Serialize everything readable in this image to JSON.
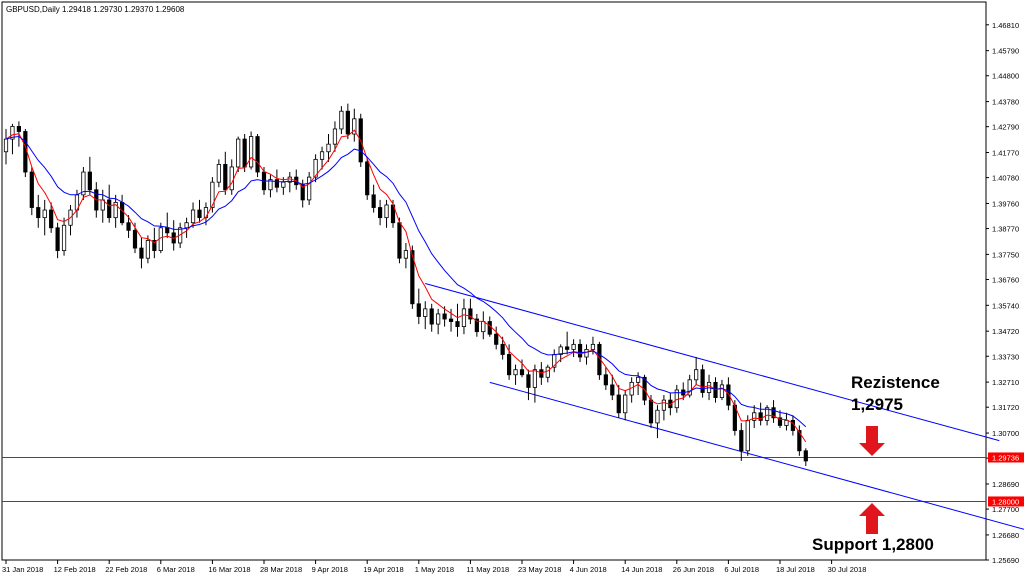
{
  "header": {
    "symbol": "GBPUSD,Daily",
    "ohlc": "1.29418 1.29730 1.29370 1.29608"
  },
  "colors": {
    "background": "#ffffff",
    "candle_outline": "#000000",
    "bull_body": "#ffffff",
    "bear_body": "#000000",
    "ma_fast": "#ff0000",
    "ma_slow": "#0000ff",
    "channel": "#0000ff",
    "hline": "#ff0000",
    "arrow": "#e0151d"
  },
  "annotations": {
    "resistance_title": "Rezistence",
    "resistance_value": "1,2975",
    "support_label": "Support 1,2800"
  },
  "chart_data": {
    "type": "candlestick",
    "title": "GBPUSD,Daily",
    "ylim": [
      1.2569,
      1.4771
    ],
    "y_ticks": [
      "1.46810",
      "1.45790",
      "1.44800",
      "1.43780",
      "1.42790",
      "1.41770",
      "1.40780",
      "1.39760",
      "1.38770",
      "1.37750",
      "1.36760",
      "1.35740",
      "1.34720",
      "1.33730",
      "1.32710",
      "1.31720",
      "1.30700",
      "1.29710",
      "1.28690",
      "1.27700",
      "1.26680",
      "1.25690"
    ],
    "x_ticks": [
      {
        "label": "31 Jan 2018",
        "index": 0
      },
      {
        "label": "12 Feb 2018",
        "index": 8
      },
      {
        "label": "22 Feb 2018",
        "index": 16
      },
      {
        "label": "6 Mar 2018",
        "index": 24
      },
      {
        "label": "16 Mar 2018",
        "index": 32
      },
      {
        "label": "28 Mar 2018",
        "index": 40
      },
      {
        "label": "9 Apr 2018",
        "index": 48
      },
      {
        "label": "19 Apr 2018",
        "index": 56
      },
      {
        "label": "1 May 2018",
        "index": 64
      },
      {
        "label": "11 May 2018",
        "index": 72
      },
      {
        "label": "23 May 2018",
        "index": 80
      },
      {
        "label": "4 Jun 2018",
        "index": 88
      },
      {
        "label": "14 Jun 2018",
        "index": 96
      },
      {
        "label": "26 Jun 2018",
        "index": 104
      },
      {
        "label": "6 Jul 2018",
        "index": 112
      },
      {
        "label": "18 Jul 2018",
        "index": 120
      },
      {
        "label": "30 Jul 2018",
        "index": 128
      }
    ],
    "price_labels": [
      {
        "text": "1.29736",
        "value": 1.29736
      },
      {
        "text": "1.28000",
        "value": 1.28
      }
    ],
    "hlines": [
      1.29736,
      1.28
    ],
    "channel": {
      "upper": {
        "start_index": 65,
        "start": 1.366,
        "end_index": 154,
        "end": 1.304
      },
      "lower": {
        "start_index": 75,
        "start": 1.327,
        "end_index": 160,
        "end": 1.2675
      }
    },
    "candles": [
      [
        1.418,
        1.427,
        1.413,
        1.423
      ],
      [
        1.423,
        1.429,
        1.417,
        1.428
      ],
      [
        1.428,
        1.43,
        1.42,
        1.426
      ],
      [
        1.426,
        1.427,
        1.408,
        1.41
      ],
      [
        1.41,
        1.412,
        1.393,
        1.396
      ],
      [
        1.396,
        1.401,
        1.388,
        1.392
      ],
      [
        1.392,
        1.399,
        1.385,
        1.395
      ],
      [
        1.395,
        1.398,
        1.386,
        1.388
      ],
      [
        1.388,
        1.39,
        1.376,
        1.379
      ],
      [
        1.379,
        1.392,
        1.377,
        1.389
      ],
      [
        1.389,
        1.397,
        1.385,
        1.395
      ],
      [
        1.395,
        1.403,
        1.392,
        1.401
      ],
      [
        1.401,
        1.412,
        1.399,
        1.41
      ],
      [
        1.41,
        1.416,
        1.401,
        1.403
      ],
      [
        1.403,
        1.406,
        1.392,
        1.395
      ],
      [
        1.395,
        1.403,
        1.39,
        1.399
      ],
      [
        1.399,
        1.405,
        1.39,
        1.392
      ],
      [
        1.392,
        1.401,
        1.388,
        1.398
      ],
      [
        1.398,
        1.401,
        1.389,
        1.39
      ],
      [
        1.39,
        1.393,
        1.384,
        1.387
      ],
      [
        1.387,
        1.39,
        1.378,
        1.38
      ],
      [
        1.38,
        1.384,
        1.372,
        1.376
      ],
      [
        1.376,
        1.385,
        1.374,
        1.383
      ],
      [
        1.383,
        1.388,
        1.376,
        1.379
      ],
      [
        1.379,
        1.39,
        1.378,
        1.388
      ],
      [
        1.388,
        1.394,
        1.384,
        1.386
      ],
      [
        1.386,
        1.391,
        1.379,
        1.382
      ],
      [
        1.382,
        1.39,
        1.38,
        1.388
      ],
      [
        1.388,
        1.392,
        1.384,
        1.39
      ],
      [
        1.39,
        1.398,
        1.388,
        1.395
      ],
      [
        1.395,
        1.399,
        1.39,
        1.392
      ],
      [
        1.392,
        1.398,
        1.389,
        1.396
      ],
      [
        1.396,
        1.408,
        1.394,
        1.406
      ],
      [
        1.406,
        1.415,
        1.404,
        1.413
      ],
      [
        1.413,
        1.418,
        1.401,
        1.403
      ],
      [
        1.403,
        1.415,
        1.401,
        1.412
      ],
      [
        1.412,
        1.424,
        1.41,
        1.423
      ],
      [
        1.423,
        1.425,
        1.41,
        1.412
      ],
      [
        1.412,
        1.426,
        1.411,
        1.424
      ],
      [
        1.424,
        1.425,
        1.408,
        1.41
      ],
      [
        1.41,
        1.412,
        1.401,
        1.403
      ],
      [
        1.403,
        1.409,
        1.4,
        1.407
      ],
      [
        1.407,
        1.411,
        1.402,
        1.404
      ],
      [
        1.404,
        1.408,
        1.401,
        1.406
      ],
      [
        1.406,
        1.41,
        1.402,
        1.408
      ],
      [
        1.408,
        1.411,
        1.403,
        1.405
      ],
      [
        1.405,
        1.407,
        1.396,
        1.399
      ],
      [
        1.399,
        1.41,
        1.397,
        1.408
      ],
      [
        1.408,
        1.417,
        1.406,
        1.415
      ],
      [
        1.415,
        1.42,
        1.411,
        1.418
      ],
      [
        1.418,
        1.425,
        1.414,
        1.421
      ],
      [
        1.421,
        1.43,
        1.418,
        1.427
      ],
      [
        1.427,
        1.436,
        1.425,
        1.434
      ],
      [
        1.434,
        1.437,
        1.423,
        1.425
      ],
      [
        1.425,
        1.435,
        1.422,
        1.431
      ],
      [
        1.431,
        1.433,
        1.412,
        1.414
      ],
      [
        1.414,
        1.416,
        1.399,
        1.401
      ],
      [
        1.401,
        1.405,
        1.394,
        1.396
      ],
      [
        1.396,
        1.399,
        1.389,
        1.392
      ],
      [
        1.392,
        1.399,
        1.388,
        1.397
      ],
      [
        1.397,
        1.399,
        1.388,
        1.39
      ],
      [
        1.39,
        1.392,
        1.374,
        1.376
      ],
      [
        1.376,
        1.382,
        1.372,
        1.379
      ],
      [
        1.379,
        1.381,
        1.356,
        1.358
      ],
      [
        1.358,
        1.364,
        1.35,
        1.353
      ],
      [
        1.353,
        1.359,
        1.348,
        1.356
      ],
      [
        1.356,
        1.358,
        1.347,
        1.35
      ],
      [
        1.35,
        1.356,
        1.346,
        1.354
      ],
      [
        1.354,
        1.357,
        1.349,
        1.352
      ],
      [
        1.352,
        1.356,
        1.347,
        1.351
      ],
      [
        1.351,
        1.358,
        1.345,
        1.349
      ],
      [
        1.349,
        1.36,
        1.346,
        1.356
      ],
      [
        1.356,
        1.36,
        1.35,
        1.352
      ],
      [
        1.352,
        1.354,
        1.345,
        1.347
      ],
      [
        1.347,
        1.355,
        1.344,
        1.351
      ],
      [
        1.351,
        1.353,
        1.345,
        1.346
      ],
      [
        1.346,
        1.349,
        1.34,
        1.342
      ],
      [
        1.342,
        1.345,
        1.336,
        1.338
      ],
      [
        1.338,
        1.342,
        1.328,
        1.33
      ],
      [
        1.33,
        1.334,
        1.326,
        1.332
      ],
      [
        1.332,
        1.336,
        1.329,
        1.33
      ],
      [
        1.33,
        1.332,
        1.32,
        1.325
      ],
      [
        1.325,
        1.334,
        1.319,
        1.332
      ],
      [
        1.332,
        1.335,
        1.326,
        1.329
      ],
      [
        1.329,
        1.334,
        1.327,
        1.333
      ],
      [
        1.333,
        1.34,
        1.331,
        1.338
      ],
      [
        1.338,
        1.342,
        1.335,
        1.341
      ],
      [
        1.341,
        1.347,
        1.338,
        1.34
      ],
      [
        1.34,
        1.344,
        1.337,
        1.342
      ],
      [
        1.342,
        1.344,
        1.335,
        1.337
      ],
      [
        1.337,
        1.342,
        1.334,
        1.34
      ],
      [
        1.34,
        1.345,
        1.338,
        1.342
      ],
      [
        1.342,
        1.343,
        1.328,
        1.33
      ],
      [
        1.33,
        1.333,
        1.324,
        1.326
      ],
      [
        1.326,
        1.33,
        1.32,
        1.322
      ],
      [
        1.322,
        1.326,
        1.313,
        1.315
      ],
      [
        1.315,
        1.324,
        1.312,
        1.322
      ],
      [
        1.322,
        1.329,
        1.319,
        1.327
      ],
      [
        1.327,
        1.331,
        1.322,
        1.329
      ],
      [
        1.329,
        1.33,
        1.318,
        1.32
      ],
      [
        1.32,
        1.322,
        1.309,
        1.311
      ],
      [
        1.311,
        1.318,
        1.305,
        1.316
      ],
      [
        1.316,
        1.322,
        1.312,
        1.32
      ],
      [
        1.32,
        1.323,
        1.314,
        1.317
      ],
      [
        1.317,
        1.326,
        1.315,
        1.324
      ],
      [
        1.324,
        1.327,
        1.32,
        1.322
      ],
      [
        1.322,
        1.33,
        1.321,
        1.328
      ],
      [
        1.328,
        1.337,
        1.326,
        1.332
      ],
      [
        1.332,
        1.334,
        1.321,
        1.323
      ],
      [
        1.323,
        1.33,
        1.32,
        1.327
      ],
      [
        1.327,
        1.329,
        1.319,
        1.321
      ],
      [
        1.321,
        1.328,
        1.32,
        1.326
      ],
      [
        1.326,
        1.329,
        1.316,
        1.318
      ],
      [
        1.318,
        1.32,
        1.306,
        1.308
      ],
      [
        1.308,
        1.311,
        1.296,
        1.3
      ],
      [
        1.3,
        1.314,
        1.298,
        1.312
      ],
      [
        1.312,
        1.318,
        1.309,
        1.315
      ],
      [
        1.315,
        1.319,
        1.31,
        1.312
      ],
      [
        1.312,
        1.318,
        1.31,
        1.317
      ],
      [
        1.317,
        1.32,
        1.311,
        1.313
      ],
      [
        1.313,
        1.316,
        1.309,
        1.31
      ],
      [
        1.31,
        1.315,
        1.308,
        1.312
      ],
      [
        1.312,
        1.314,
        1.306,
        1.308
      ],
      [
        1.308,
        1.31,
        1.298,
        1.3
      ],
      [
        1.3,
        1.301,
        1.294,
        1.296
      ]
    ]
  }
}
